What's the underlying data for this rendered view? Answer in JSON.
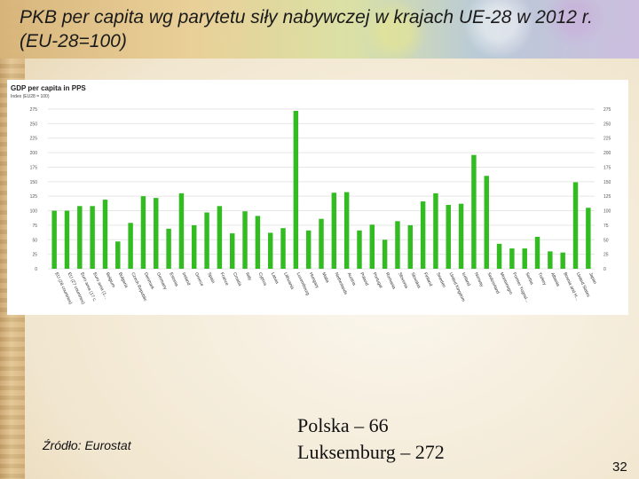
{
  "slide": {
    "title": "PKB per capita wg parytetu siły nabywczej w krajach UE-28 w 2012 r. (EU-28=100)",
    "source": "Źródło: Eurostat",
    "notes": [
      "Polska – 66",
      "Luksemburg – 272"
    ],
    "page_number": "32"
  },
  "chart_data": {
    "type": "bar",
    "title": "GDP per capita in PPS",
    "subtitle": "Index (EU28 = 100)",
    "xlabel": "",
    "ylabel": "",
    "ylim": [
      0,
      275
    ],
    "yticks": [
      0,
      25,
      50,
      75,
      100,
      125,
      150,
      175,
      200,
      225,
      250,
      275
    ],
    "grid": true,
    "legend": "none",
    "bar_color": "#33bb22",
    "categories": [
      "EU (28 countries)",
      "EU (27 countries)",
      "Euro area (17 c.",
      "Euro area (1...",
      "Belgium",
      "Bulgaria",
      "Czech Republic",
      "Denmark",
      "Germany",
      "Estonia",
      "Ireland",
      "Greece",
      "Spain",
      "France",
      "Croatia",
      "Italy",
      "Cyprus",
      "Latvia",
      "Lithuania",
      "Luxembourg",
      "Hungary",
      "Malta",
      "Netherlands",
      "Austria",
      "Poland",
      "Portugal",
      "Romania",
      "Slovenia",
      "Slovakia",
      "Finland",
      "Sweden",
      "United Kingdom",
      "Iceland",
      "Norway",
      "Switzerland",
      "Montenegro",
      "Former Yugosl...",
      "Serbia",
      "Turkey",
      "Albania",
      "Bosnia and H...",
      "United States",
      "Japan"
    ],
    "values": [
      100,
      100,
      108,
      108,
      119,
      47,
      79,
      125,
      122,
      69,
      130,
      75,
      97,
      108,
      61,
      99,
      91,
      62,
      70,
      272,
      66,
      86,
      131,
      132,
      66,
      76,
      50,
      82,
      75,
      116,
      130,
      110,
      112,
      196,
      160,
      43,
      35,
      35,
      55,
      30,
      28,
      149,
      105
    ]
  }
}
